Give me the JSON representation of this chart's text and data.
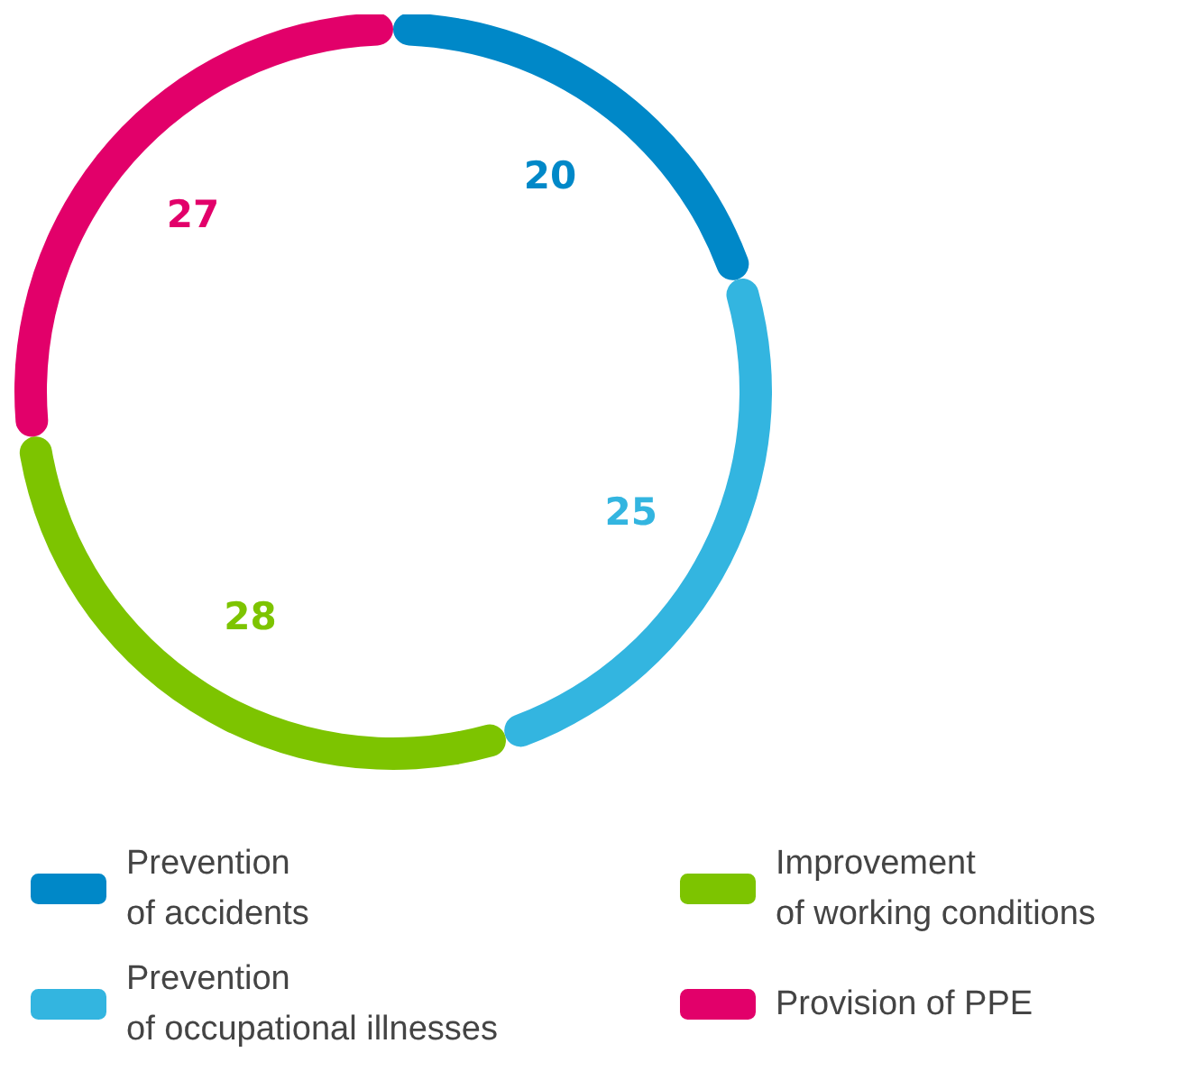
{
  "chart_data": {
    "type": "donut",
    "categories": [
      "Prevention of accidents",
      "Prevention of occupational illnesses",
      "Improvement of working conditions",
      "Provision of PPE"
    ],
    "values": [
      20,
      25,
      28,
      27
    ],
    "colors": [
      "#0088c8",
      "#33b5e0",
      "#7dc400",
      "#e2006a"
    ],
    "data_labels": true,
    "legend": "bottom"
  }
}
